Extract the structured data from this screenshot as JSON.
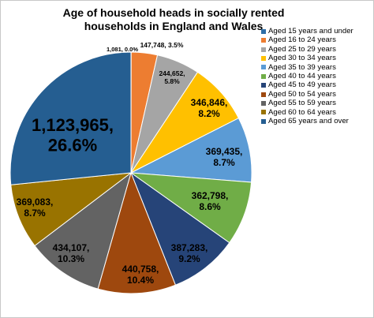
{
  "chart_data": {
    "type": "pie",
    "title": "Age of household heads in socially rented households in England and Wales",
    "slices": [
      {
        "label": "Aged 15 years and under",
        "value": 1081,
        "percent": "0.0%",
        "display": "1,081, 0.0%",
        "color": "#2e6ea6"
      },
      {
        "label": "Aged 16 to 24 years",
        "value": 147748,
        "percent": "3.5%",
        "display": "147,748, 3.5%",
        "color": "#ed7d31"
      },
      {
        "label": "Aged 25 to 29 years",
        "value": 244652,
        "percent": "5.8%",
        "display": "244,652, 5.8%",
        "color": "#a5a5a5"
      },
      {
        "label": "Aged 30 to 34 years",
        "value": 346846,
        "percent": "8.2%",
        "display": "346,846, 8.2%",
        "color": "#ffc000"
      },
      {
        "label": "Aged 35 to 39 years",
        "value": 369435,
        "percent": "8.7%",
        "display": "369,435, 8.7%",
        "color": "#5b9bd5"
      },
      {
        "label": "Aged 40 to 44 years",
        "value": 362798,
        "percent": "8.6%",
        "display": "362,798, 8.6%",
        "color": "#70ad47"
      },
      {
        "label": "Aged 45 to 49 years",
        "value": 387283,
        "percent": "9.2%",
        "display": "387,283, 9.2%",
        "color": "#264478"
      },
      {
        "label": "Aged 50 to 54 years",
        "value": 440758,
        "percent": "10.4%",
        "display": "440,758, 10.4%",
        "color": "#9e480e"
      },
      {
        "label": "Aged 55 to 59 years",
        "value": 434107,
        "percent": "10.3%",
        "display": "434,107, 10.3%",
        "color": "#636363"
      },
      {
        "label": "Aged 60 to 64 years",
        "value": 369083,
        "percent": "8.7%",
        "display": "369,083, 8.7%",
        "color": "#997300"
      },
      {
        "label": "Aged 65 years and over",
        "value": 1123965,
        "percent": "26.6%",
        "display": "1,123,965, 26.6%",
        "color": "#255e91"
      }
    ],
    "legend_position": "right"
  }
}
